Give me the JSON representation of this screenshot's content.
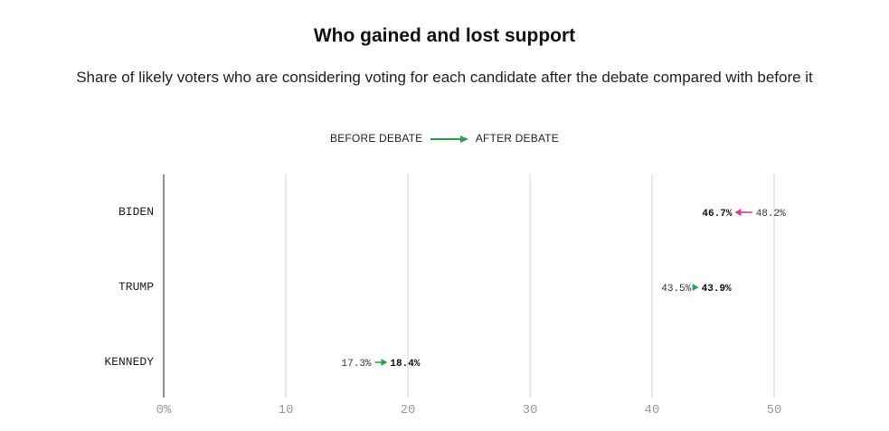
{
  "title": "Who gained and lost support",
  "subtitle": "Share of likely voters who are considering voting for each candidate after the debate compared with before it",
  "legend": {
    "before_label": "BEFORE DEBATE",
    "after_label": "AFTER DEBATE"
  },
  "colors": {
    "gain": "#2e9e4f",
    "loss": "#d6399b",
    "grid": "#d0d0d0",
    "axis": "#222222",
    "tick": "#999999"
  },
  "chart_data": {
    "type": "dumbbell-arrow",
    "title": "Who gained and lost support",
    "xlabel": "",
    "ylabel": "",
    "xlim": [
      0,
      50
    ],
    "x_ticks": [
      0,
      10,
      20,
      30,
      40,
      50
    ],
    "x_tick_labels": [
      "0%",
      "10",
      "20",
      "30",
      "40",
      "50"
    ],
    "categories": [
      "BIDEN",
      "TRUMP",
      "KENNEDY"
    ],
    "series": [
      {
        "name": "BEFORE DEBATE",
        "values": [
          48.2,
          43.5,
          17.3
        ],
        "labels": [
          "48.2%",
          "43.5%",
          "17.3%"
        ]
      },
      {
        "name": "AFTER DEBATE",
        "values": [
          46.7,
          43.9,
          18.4
        ],
        "labels": [
          "46.7%",
          "43.9%",
          "18.4%"
        ]
      }
    ]
  }
}
